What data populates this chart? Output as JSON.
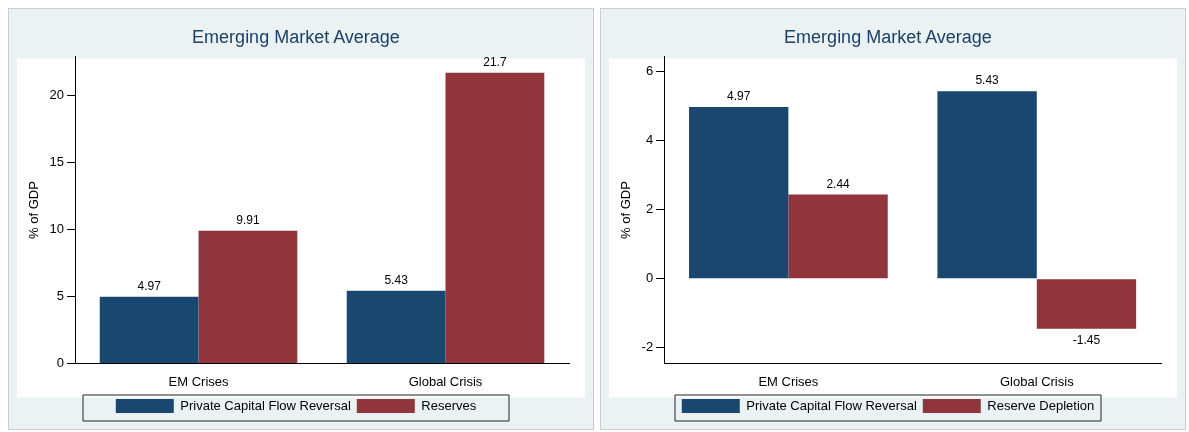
{
  "chart_data": [
    {
      "type": "bar",
      "title": "Emerging Market Average",
      "ylabel": "% of GDP",
      "categories": [
        "EM Crises",
        "Global Crisis"
      ],
      "series": [
        {
          "name": "Private Capital Flow Reversal",
          "color": "#1a476f",
          "values": [
            4.97,
            5.43
          ]
        },
        {
          "name": "Reserves",
          "color": "#90353b",
          "values": [
            9.91,
            21.7
          ]
        }
      ],
      "ylim": [
        0,
        22.9
      ],
      "yticks": [
        0,
        5,
        10,
        15,
        20
      ],
      "grid": false,
      "legend": "bottom",
      "data_labels": true
    },
    {
      "type": "bar",
      "title": "Emerging Market Average",
      "ylabel": "% of GDP",
      "categories": [
        "EM Crises",
        "Global Crisis"
      ],
      "series": [
        {
          "name": "Private Capital Flow Reversal",
          "color": "#1a476f",
          "values": [
            4.97,
            5.43
          ]
        },
        {
          "name": "Reserve Depletion",
          "color": "#90353b",
          "values": [
            2.44,
            -1.45
          ]
        }
      ],
      "ylim": [
        -2.45,
        6.43
      ],
      "yticks": [
        -2,
        0,
        2,
        4,
        6
      ],
      "grid": false,
      "legend": "bottom",
      "data_labels": true
    }
  ]
}
